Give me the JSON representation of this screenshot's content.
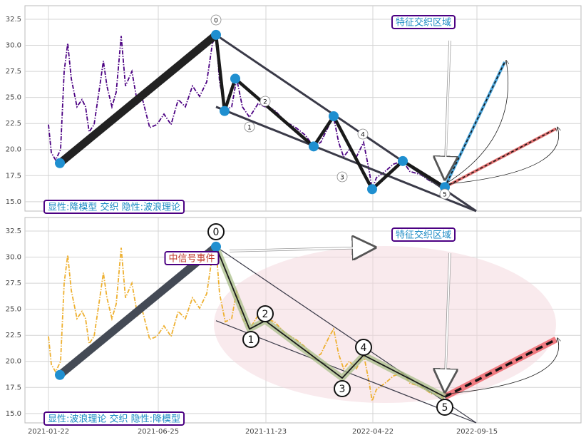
{
  "chart_data": [
    {
      "type": "line",
      "xlim": [
        "2020-12-20",
        "2023-02-08"
      ],
      "ylim": [
        14.1,
        33.8
      ],
      "yticks": [
        {
          "value": 15,
          "label": "15.0"
        },
        {
          "value": 17.5,
          "label": "17.5"
        },
        {
          "value": 20,
          "label": "20.0"
        },
        {
          "value": 22.5,
          "label": "22.5"
        },
        {
          "value": 25,
          "label": "25.0"
        },
        {
          "value": 27.5,
          "label": "27.5"
        },
        {
          "value": 30,
          "label": "30.0"
        },
        {
          "value": 32.5,
          "label": "32.5"
        }
      ],
      "grid": true,
      "x": [
        "2021-01-22",
        "2021-01-26",
        "2021-02-01",
        "2021-02-08",
        "2021-02-13",
        "2021-02-18",
        "2021-02-23",
        "2021-03-03",
        "2021-03-10",
        "2021-03-15",
        "2021-03-20",
        "2021-03-27",
        "2021-04-04",
        "2021-04-09",
        "2021-04-14",
        "2021-04-21",
        "2021-04-27",
        "2021-05-04",
        "2021-05-10",
        "2021-05-19",
        "2021-05-27",
        "2021-06-03",
        "2021-06-13",
        "2021-06-23",
        "2021-07-03",
        "2021-07-13",
        "2021-07-23",
        "2021-08-02",
        "2021-08-12",
        "2021-08-22",
        "2021-09-01",
        "2021-09-09",
        "2021-09-14",
        "2021-09-19",
        "2021-09-27",
        "2021-10-06",
        "2021-10-13",
        "2021-10-21",
        "2021-10-31",
        "2021-11-12",
        "2021-11-22",
        "2021-12-05",
        "2021-12-20",
        "2022-01-04",
        "2022-01-17",
        "2022-01-29",
        "2022-02-08",
        "2022-02-20",
        "2022-02-26",
        "2022-03-05",
        "2022-03-12",
        "2022-03-20",
        "2022-03-30",
        "2022-04-09",
        "2022-04-17",
        "2022-04-21",
        "2022-04-27",
        "2022-05-09",
        "2022-05-21",
        "2022-06-03",
        "2022-06-13",
        "2022-06-28",
        "2022-07-13",
        "2022-07-23",
        "2022-08-02"
      ],
      "series": [
        {
          "color": "#4b0082",
          "values": [
            22.4,
            19.7,
            19.0,
            20.0,
            27.5,
            30.2,
            26.8,
            24.1,
            24.8,
            24.1,
            21.7,
            22.4,
            26.1,
            28.5,
            26.1,
            24.1,
            25.5,
            30.9,
            26.1,
            27.5,
            24.4,
            24.8,
            22.1,
            22.4,
            23.4,
            22.4,
            24.8,
            24.1,
            26.1,
            25.1,
            26.5,
            30.2,
            30.9,
            26.5,
            23.8,
            24.1,
            26.8,
            24.1,
            23.1,
            24.4,
            24.1,
            23.8,
            22.7,
            22.1,
            21.4,
            20.3,
            20.7,
            22.4,
            23.1,
            20.7,
            19.3,
            20.0,
            19.3,
            20.7,
            17.9,
            16.2,
            17.3,
            17.9,
            18.6,
            18.9,
            17.9,
            17.6,
            16.9,
            16.9,
            16.2
          ]
        }
      ],
      "waves": {
        "color": "#1a1a1a",
        "x": [
          "2021-02-07",
          "2021-09-14",
          "2021-09-26",
          "2021-10-11",
          "2022-01-29",
          "2022-02-26",
          "2022-04-21",
          "2022-06-03",
          "2022-08-01"
        ],
        "values": [
          18.7,
          31.0,
          23.7,
          26.8,
          20.3,
          23.2,
          16.2,
          18.9,
          16.4
        ]
      },
      "nodes": {
        "color": "#1f8fd0",
        "x": [
          "2021-02-07",
          "2021-09-14",
          "2021-09-26",
          "2021-10-11",
          "2022-01-29",
          "2022-02-26",
          "2022-04-21",
          "2022-06-03",
          "2022-08-01"
        ],
        "values": [
          18.7,
          31.0,
          23.7,
          26.8,
          20.3,
          23.2,
          16.2,
          18.9,
          16.4
        ]
      },
      "lines": [
        {
          "color": "#3a3a48",
          "x": [
            "2021-09-14",
            "2022-09-14"
          ],
          "values": [
            31.0,
            14.1
          ]
        },
        {
          "color": "#3a3a48",
          "x": [
            "2021-09-14",
            "2022-09-14"
          ],
          "values": [
            24.1,
            14.1
          ]
        },
        {
          "color": "#4aa3d8",
          "x": [
            "2022-08-01",
            "2022-10-24"
          ],
          "values": [
            16.4,
            28.4
          ]
        },
        {
          "color": "#e07070",
          "x": [
            "2022-08-01",
            "2023-01-04"
          ],
          "values": [
            16.4,
            22.0
          ]
        }
      ],
      "wave_labels": [
        "0",
        "1",
        "2",
        "3",
        "4",
        "5"
      ],
      "annotations": [
        "特征交织区域",
        "显性:降模型 交织 隐性:波浪理论"
      ]
    },
    {
      "type": "line",
      "xlim": [
        "2020-12-20",
        "2023-02-08"
      ],
      "ylim": [
        14.1,
        33.8
      ],
      "yticks": [
        {
          "value": 15,
          "label": "15.0"
        },
        {
          "value": 17.5,
          "label": "17.5"
        },
        {
          "value": 20,
          "label": "20.0"
        },
        {
          "value": 22.5,
          "label": "22.5"
        },
        {
          "value": 25,
          "label": "25.0"
        },
        {
          "value": 27.5,
          "label": "27.5"
        },
        {
          "value": 30,
          "label": "30.0"
        },
        {
          "value": 32.5,
          "label": "32.5"
        }
      ],
      "xticks": [
        "2021-01-22",
        "2021-06-25",
        "2021-11-23",
        "2022-04-22",
        "2022-09-15"
      ],
      "grid": true,
      "x": [
        "2021-01-22",
        "2021-01-26",
        "2021-02-01",
        "2021-02-08",
        "2021-02-13",
        "2021-02-18",
        "2021-02-23",
        "2021-03-03",
        "2021-03-10",
        "2021-03-15",
        "2021-03-20",
        "2021-03-27",
        "2021-04-04",
        "2021-04-09",
        "2021-04-14",
        "2021-04-21",
        "2021-04-27",
        "2021-05-04",
        "2021-05-10",
        "2021-05-19",
        "2021-05-27",
        "2021-06-03",
        "2021-06-13",
        "2021-06-23",
        "2021-07-03",
        "2021-07-13",
        "2021-07-23",
        "2021-08-02",
        "2021-08-12",
        "2021-08-22",
        "2021-09-01",
        "2021-09-09",
        "2021-09-14",
        "2021-09-19",
        "2021-09-27",
        "2021-10-06",
        "2021-10-13",
        "2021-10-21",
        "2021-10-31",
        "2021-11-12",
        "2021-11-22",
        "2021-12-05",
        "2021-12-20",
        "2022-01-04",
        "2022-01-17",
        "2022-01-29",
        "2022-02-08",
        "2022-02-20",
        "2022-02-26",
        "2022-03-05",
        "2022-03-12",
        "2022-03-20",
        "2022-03-30",
        "2022-04-09",
        "2022-04-17",
        "2022-04-21",
        "2022-04-27",
        "2022-05-09",
        "2022-05-21",
        "2022-06-03",
        "2022-06-13",
        "2022-06-28",
        "2022-07-13",
        "2022-07-23",
        "2022-08-02"
      ],
      "series": [
        {
          "color": "#eeb030",
          "values": [
            22.4,
            19.7,
            19.0,
            20.0,
            27.5,
            30.2,
            26.8,
            24.1,
            24.8,
            24.1,
            21.7,
            22.4,
            26.1,
            28.5,
            26.1,
            24.1,
            25.5,
            30.9,
            26.1,
            27.5,
            24.4,
            24.8,
            22.1,
            22.4,
            23.4,
            22.4,
            24.8,
            24.1,
            26.1,
            25.1,
            26.5,
            30.2,
            30.9,
            26.5,
            23.8,
            24.1,
            26.8,
            24.1,
            23.1,
            24.4,
            24.1,
            23.8,
            22.7,
            22.1,
            21.4,
            20.3,
            20.7,
            22.4,
            23.1,
            20.7,
            19.3,
            20.0,
            19.3,
            20.7,
            17.9,
            16.2,
            17.3,
            17.9,
            18.6,
            18.9,
            17.9,
            17.6,
            16.9,
            16.9,
            16.2
          ]
        }
      ],
      "waves": {
        "color": "#1a1a1a",
        "x": [
          "2021-02-07",
          "2021-09-14",
          "2021-10-31",
          "2021-11-22",
          "2022-03-10",
          "2022-04-09",
          "2022-08-01"
        ],
        "values": [
          18.7,
          31.0,
          23.1,
          23.9,
          18.4,
          20.6,
          16.6
        ]
      },
      "nodes": {
        "color": "#1f8fd0",
        "x": [
          "2021-02-07",
          "2021-09-14"
        ],
        "values": [
          18.7,
          31.0
        ]
      },
      "lines": [
        {
          "color": "#3a3a48",
          "x": [
            "2021-09-14",
            "2022-09-14"
          ],
          "values": [
            31.0,
            14.1
          ]
        },
        {
          "color": "#3a3a48",
          "x": [
            "2021-09-14",
            "2022-09-14"
          ],
          "values": [
            23.9,
            14.1
          ]
        },
        {
          "color": "#f07a80",
          "x": [
            "2022-08-01",
            "2023-01-04"
          ],
          "values": [
            16.6,
            22.1
          ]
        }
      ],
      "wave_labels": [
        "0",
        "1",
        "2",
        "3",
        "4",
        "5"
      ],
      "annotations": [
        "特征交织区域",
        "中信号事件",
        "显性:波浪理论 交织 隐性:降模型"
      ]
    }
  ]
}
